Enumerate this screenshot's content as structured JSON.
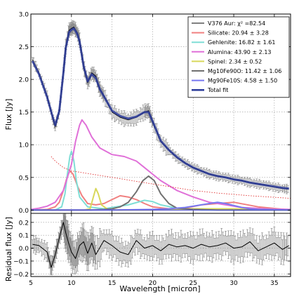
{
  "chart_data": [
    {
      "type": "line",
      "panel": "flux",
      "ylabel": "Flux [Jy]",
      "xlim": [
        5,
        37
      ],
      "ylim": [
        -0.05,
        3.0
      ],
      "yticks": [
        0.0,
        0.5,
        1.0,
        1.5,
        2.0,
        2.5,
        3.0
      ],
      "ytick_labels": [
        "0.0",
        "0.5",
        "1.0",
        "1.5",
        "2.0",
        "2.5",
        "3.0"
      ],
      "grid": true,
      "legend_position": "top-right",
      "series": [
        {
          "name": "V376 Aur: χ² =82.54",
          "color": "#000000",
          "x": [
            5.2,
            6,
            7,
            7.7,
            8,
            8.5,
            9,
            9.3,
            9.7,
            10,
            10.3,
            10.7,
            11,
            11.5,
            12,
            12.5,
            13,
            13.5,
            14,
            15,
            16,
            17,
            18,
            19,
            19.5,
            20,
            21,
            22,
            23,
            24,
            25,
            26,
            27,
            28,
            29,
            30,
            31,
            32,
            33,
            34,
            35,
            36,
            36.8
          ],
          "y": [
            2.3,
            2.1,
            1.75,
            1.4,
            1.28,
            1.5,
            2.1,
            2.5,
            2.75,
            2.78,
            2.8,
            2.72,
            2.6,
            2.2,
            1.95,
            2.1,
            2.05,
            1.85,
            1.75,
            1.5,
            1.42,
            1.38,
            1.42,
            1.5,
            1.52,
            1.35,
            1.05,
            0.92,
            0.8,
            0.72,
            0.65,
            0.6,
            0.55,
            0.52,
            0.5,
            0.47,
            0.45,
            0.42,
            0.4,
            0.38,
            0.35,
            0.33,
            0.32
          ]
        },
        {
          "name": "Silicate: 20.94 ± 3.28",
          "color": "#f08080",
          "x": [
            5,
            7,
            8,
            8.5,
            9,
            9.5,
            9.8,
            10.2,
            10.8,
            11.3,
            12,
            13,
            14,
            15,
            16,
            17,
            18,
            19,
            20,
            22,
            24,
            26,
            28,
            30,
            33,
            37
          ],
          "y": [
            0,
            0.01,
            0.05,
            0.12,
            0.3,
            0.52,
            0.6,
            0.55,
            0.35,
            0.22,
            0.1,
            0.08,
            0.1,
            0.16,
            0.22,
            0.2,
            0.16,
            0.1,
            0.05,
            0.02,
            0.03,
            0.08,
            0.1,
            0.12,
            0.05,
            0
          ]
        },
        {
          "name": "Gehlenite: 16.82 ± 1.61",
          "color": "#7fded6",
          "x": [
            5,
            8,
            8.8,
            9.2,
            9.5,
            9.8,
            10,
            10.3,
            10.6,
            11,
            12,
            14,
            17,
            19,
            20,
            21,
            23,
            26,
            30,
            37
          ],
          "y": [
            0,
            0,
            0.05,
            0.25,
            0.55,
            0.82,
            0.9,
            0.75,
            0.45,
            0.2,
            0.05,
            0.02,
            0.08,
            0.15,
            0.13,
            0.08,
            0.03,
            0,
            0,
            0
          ]
        },
        {
          "name": "Alumina: 43.90 ± 2.13",
          "color": "#e070d8",
          "x": [
            5,
            6,
            7,
            8,
            9,
            10,
            10.5,
            11,
            11.3,
            11.8,
            12.5,
            13.5,
            15,
            16.5,
            18,
            19,
            20,
            21,
            23,
            25,
            27,
            29,
            31,
            34,
            37
          ],
          "y": [
            0.01,
            0.03,
            0.06,
            0.12,
            0.3,
            0.7,
            1.05,
            1.3,
            1.38,
            1.3,
            1.12,
            0.95,
            0.85,
            0.82,
            0.75,
            0.65,
            0.55,
            0.45,
            0.3,
            0.2,
            0.12,
            0.08,
            0.04,
            0.02,
            0.01
          ]
        },
        {
          "name": "Spinel: 2.34 ± 0.52",
          "color": "#d8d85a",
          "x": [
            5,
            11.5,
            12.3,
            12.7,
            13,
            13.3,
            13.7,
            14.5,
            16,
            20,
            25,
            30,
            37
          ],
          "y": [
            0,
            0,
            0.02,
            0.2,
            0.33,
            0.25,
            0.08,
            0.01,
            0,
            0,
            0.02,
            0.02,
            0
          ]
        },
        {
          "name": "Mg10Fe90O: 11.42 ± 1.06",
          "color": "#707070",
          "x": [
            5,
            12,
            14,
            15,
            16,
            17,
            18,
            18.8,
            19.5,
            20.2,
            21,
            22,
            23,
            25,
            28,
            37
          ],
          "y": [
            0,
            0,
            0.01,
            0.02,
            0.05,
            0.12,
            0.28,
            0.45,
            0.52,
            0.45,
            0.25,
            0.1,
            0.03,
            0.01,
            0,
            0
          ]
        },
        {
          "name": "Mg90Fe10S: 4.58 ± 1.50",
          "color": "#7878f0",
          "x": [
            5,
            15,
            20,
            22,
            24,
            26,
            27,
            28,
            29,
            30,
            31,
            32,
            33,
            37
          ],
          "y": [
            0,
            0,
            0.01,
            0.02,
            0.04,
            0.08,
            0.1,
            0.12,
            0.1,
            0.07,
            0.04,
            0.02,
            0.01,
            0
          ]
        },
        {
          "name": "Total fit",
          "color": "#2a3a9a",
          "x": [
            5.2,
            6,
            7,
            7.7,
            8,
            8.5,
            9,
            9.3,
            9.7,
            10,
            10.3,
            10.7,
            11,
            11.5,
            12,
            12.5,
            13,
            13.5,
            14,
            15,
            16,
            17,
            18,
            19,
            19.5,
            20,
            21,
            22,
            23,
            24,
            25,
            26,
            27,
            28,
            29,
            30,
            31,
            32,
            33,
            34,
            35,
            36,
            36.8
          ],
          "y": [
            2.28,
            2.08,
            1.73,
            1.42,
            1.3,
            1.52,
            2.1,
            2.48,
            2.72,
            2.76,
            2.78,
            2.7,
            2.58,
            2.2,
            1.97,
            2.08,
            2.02,
            1.85,
            1.74,
            1.52,
            1.44,
            1.4,
            1.43,
            1.5,
            1.5,
            1.36,
            1.06,
            0.92,
            0.81,
            0.72,
            0.65,
            0.6,
            0.55,
            0.52,
            0.5,
            0.47,
            0.45,
            0.42,
            0.4,
            0.38,
            0.36,
            0.34,
            0.33
          ]
        },
        {
          "name": "",
          "color": "#e03030",
          "dashed": true,
          "x": [
            7.5,
            8,
            9,
            10,
            12,
            14,
            16,
            18,
            20,
            22,
            25,
            28,
            32,
            37
          ],
          "y": [
            0.82,
            0.75,
            0.65,
            0.6,
            0.56,
            0.52,
            0.48,
            0.44,
            0.4,
            0.36,
            0.3,
            0.26,
            0.22,
            0.18
          ]
        }
      ]
    },
    {
      "type": "line",
      "panel": "residual",
      "xlabel": "Wavelength [micron]",
      "ylabel": "Residual flux [Jy]",
      "xlim": [
        5,
        37
      ],
      "ylim": [
        -0.22,
        0.27
      ],
      "xticks": [
        5,
        10,
        15,
        20,
        25,
        30,
        35
      ],
      "xtick_labels": [
        "5",
        "10",
        "15",
        "20",
        "25",
        "30",
        "35"
      ],
      "yticks": [
        -0.2,
        -0.1,
        0.0,
        0.1,
        0.2
      ],
      "ytick_labels": [
        "−0.2",
        "−0.1",
        "0.0",
        "0.1",
        "0.2"
      ],
      "grid": true,
      "series": [
        {
          "name": "",
          "color": "#000000",
          "x": [
            5.2,
            6,
            7,
            7.5,
            8,
            8.5,
            9,
            9.3,
            9.6,
            10,
            10.5,
            11,
            11.5,
            12,
            12.5,
            13,
            14,
            15,
            16,
            17,
            18,
            19,
            20,
            21,
            22,
            23,
            24,
            25,
            26,
            27,
            28,
            29,
            30,
            31,
            32,
            33,
            34,
            35,
            36,
            36.8
          ],
          "y": [
            0.03,
            0.02,
            -0.03,
            -0.15,
            -0.05,
            0.08,
            0.2,
            0.12,
            0.05,
            -0.03,
            -0.08,
            0.02,
            0.05,
            -0.04,
            0.04,
            -0.05,
            0.06,
            0.02,
            -0.03,
            -0.05,
            0.06,
            0,
            0.02,
            -0.02,
            0.03,
            0.01,
            0.02,
            0,
            0.03,
            0.01,
            0.02,
            0.04,
            0,
            0.01,
            0.05,
            -0.02,
            0.01,
            0.04,
            -0.01,
            0.02
          ]
        }
      ]
    }
  ]
}
